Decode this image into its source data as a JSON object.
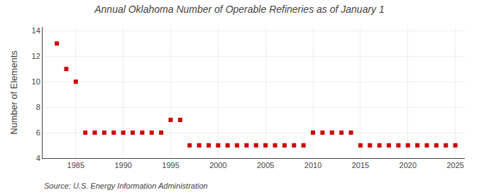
{
  "chart_data": {
    "type": "scatter",
    "title": "Annual Oklahoma Number of Operable Refineries as of January 1",
    "ylabel": "Number of Elements",
    "annotations": [
      "Source: U.S. Energy Information Administration"
    ],
    "color": "#cc0000",
    "marker": "square",
    "grid": true,
    "xlim": [
      1981.5,
      2026
    ],
    "xticks": [
      1985,
      1990,
      1995,
      2000,
      2005,
      2010,
      2015,
      2020,
      2025
    ],
    "ylim": [
      4,
      14.3
    ],
    "yticks": [
      4,
      6,
      8,
      10,
      12,
      14
    ],
    "x": [
      1983,
      1984,
      1985,
      1986,
      1987,
      1988,
      1989,
      1990,
      1991,
      1992,
      1993,
      1994,
      1995,
      1996,
      1997,
      1998,
      1999,
      2000,
      2001,
      2002,
      2003,
      2004,
      2005,
      2006,
      2007,
      2008,
      2009,
      2010,
      2011,
      2012,
      2013,
      2014,
      2015,
      2016,
      2017,
      2018,
      2019,
      2020,
      2021,
      2022,
      2023,
      2024,
      2025
    ],
    "values": [
      13,
      11,
      10,
      6,
      6,
      6,
      6,
      6,
      6,
      6,
      6,
      6,
      7,
      7,
      5,
      5,
      5,
      5,
      5,
      5,
      5,
      5,
      5,
      5,
      5,
      5,
      5,
      6,
      6,
      6,
      6,
      6,
      5,
      5,
      5,
      5,
      5,
      5,
      5,
      5,
      5,
      5,
      5
    ]
  }
}
